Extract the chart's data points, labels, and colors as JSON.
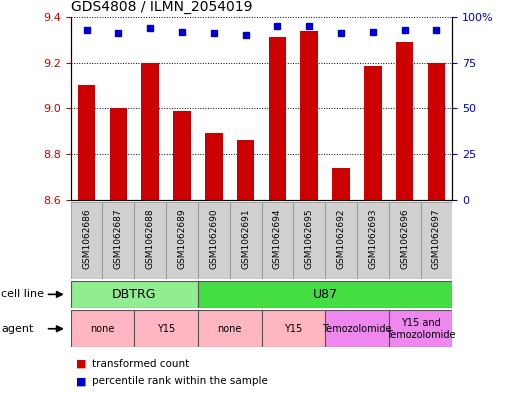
{
  "title": "GDS4808 / ILMN_2054019",
  "samples": [
    "GSM1062686",
    "GSM1062687",
    "GSM1062688",
    "GSM1062689",
    "GSM1062690",
    "GSM1062691",
    "GSM1062694",
    "GSM1062695",
    "GSM1062692",
    "GSM1062693",
    "GSM1062696",
    "GSM1062697"
  ],
  "red_values": [
    9.1,
    9.0,
    9.2,
    8.99,
    8.89,
    8.86,
    9.31,
    9.34,
    8.74,
    9.185,
    9.29,
    9.2
  ],
  "blue_values": [
    93,
    91,
    94,
    92,
    91,
    90,
    95,
    95,
    91,
    92,
    93,
    93
  ],
  "ylim_left": [
    8.6,
    9.4
  ],
  "ylim_right": [
    0,
    100
  ],
  "yticks_left": [
    8.6,
    8.8,
    9.0,
    9.2,
    9.4
  ],
  "yticks_right": [
    0,
    25,
    50,
    75,
    100
  ],
  "cell_line_groups": [
    {
      "label": "DBTRG",
      "start": 0,
      "end": 3,
      "color": "#90EE90"
    },
    {
      "label": "U87",
      "start": 4,
      "end": 11,
      "color": "#44DD44"
    }
  ],
  "agent_groups": [
    {
      "label": "none",
      "start": 0,
      "end": 1,
      "color": "#FFB6C1"
    },
    {
      "label": "Y15",
      "start": 2,
      "end": 3,
      "color": "#FFB6C1"
    },
    {
      "label": "none",
      "start": 4,
      "end": 5,
      "color": "#FFB6C1"
    },
    {
      "label": "Y15",
      "start": 6,
      "end": 7,
      "color": "#FFB6C1"
    },
    {
      "label": "Temozolomide",
      "start": 8,
      "end": 9,
      "color": "#EE88EE"
    },
    {
      "label": "Y15 and\nTemozolomide",
      "start": 10,
      "end": 11,
      "color": "#EE88EE"
    }
  ],
  "bar_color": "#CC0000",
  "dot_color": "#0000CC",
  "bar_baseline": 8.6,
  "tick_label_color_left": "#CC0000",
  "tick_label_color_right": "#0000CC",
  "legend_items": [
    {
      "label": "transformed count",
      "color": "#CC0000"
    },
    {
      "label": "percentile rank within the sample",
      "color": "#0000CC"
    }
  ]
}
